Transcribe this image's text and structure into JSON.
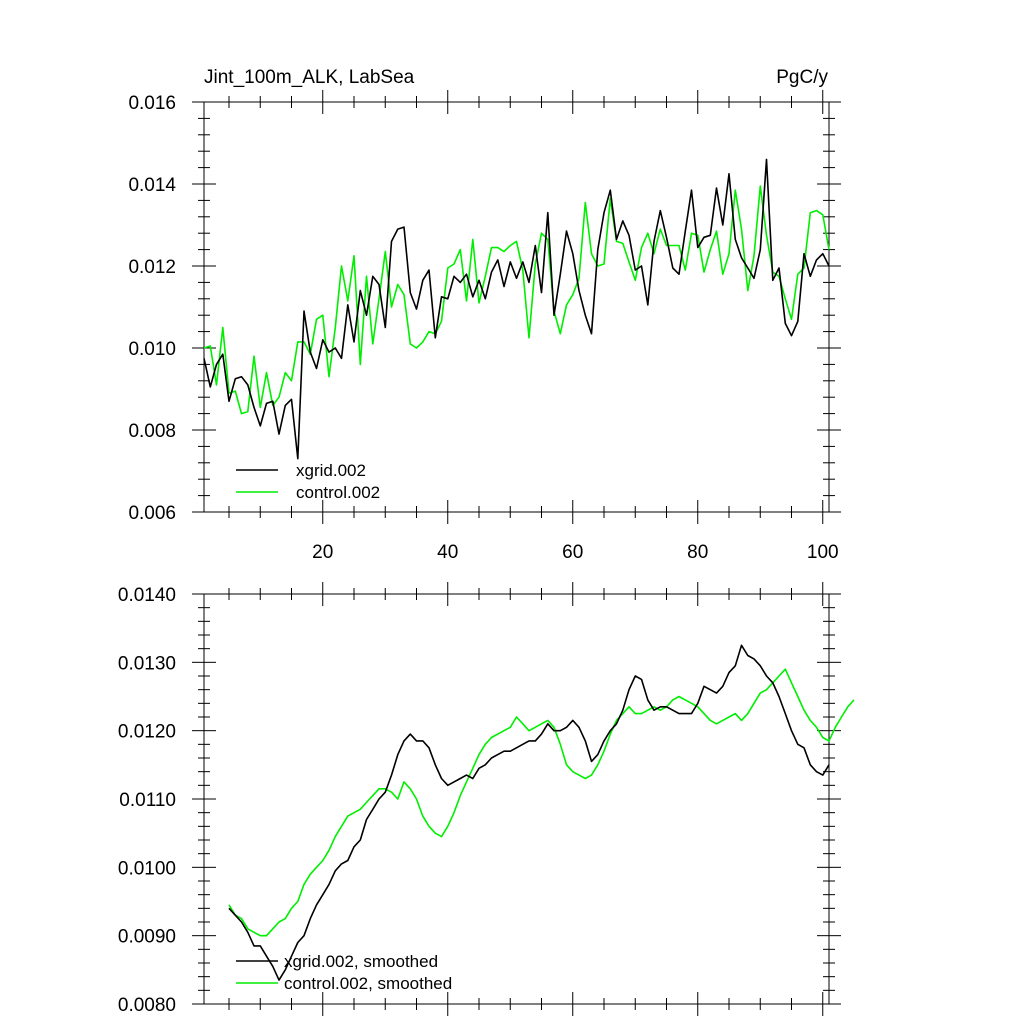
{
  "chart_data": [
    {
      "type": "line",
      "title": "Jint_100m_ALK, LabSea",
      "units": "PgC/y",
      "xlabel": "",
      "ylabel": "",
      "xlim": [
        1,
        101
      ],
      "ylim": [
        0.006,
        0.016
      ],
      "x_ticks": [
        20,
        40,
        60,
        80,
        100
      ],
      "x_tick_labels": [
        "20",
        "40",
        "60",
        "80",
        "100"
      ],
      "y_ticks": [
        0.006,
        0.008,
        0.01,
        0.012,
        0.014,
        0.016
      ],
      "y_tick_labels": [
        "0.006",
        "0.008",
        "0.010",
        "0.012",
        "0.014",
        "0.016"
      ],
      "legend_position": "bottom-left",
      "series": [
        {
          "name": "xgrid.002",
          "color": "#000000",
          "x_start": 1,
          "values": [
            0.00975,
            0.00905,
            0.0096,
            0.00985,
            0.0087,
            0.00925,
            0.0093,
            0.0091,
            0.00855,
            0.0081,
            0.00865,
            0.0087,
            0.0079,
            0.0086,
            0.00875,
            0.0073,
            0.0109,
            0.0099,
            0.0095,
            0.0102,
            0.0099,
            0.01,
            0.00975,
            0.01105,
            0.01015,
            0.0114,
            0.0108,
            0.01175,
            0.01155,
            0.0105,
            0.0126,
            0.0129,
            0.01295,
            0.01135,
            0.01095,
            0.01165,
            0.0119,
            0.01025,
            0.01125,
            0.0112,
            0.01175,
            0.0116,
            0.0118,
            0.01125,
            0.01165,
            0.0112,
            0.01185,
            0.01215,
            0.0115,
            0.0121,
            0.0117,
            0.0121,
            0.0116,
            0.0125,
            0.01135,
            0.0133,
            0.0108,
            0.0118,
            0.01285,
            0.0123,
            0.0114,
            0.0108,
            0.01035,
            0.0124,
            0.0133,
            0.01385,
            0.01265,
            0.0131,
            0.01275,
            0.0119,
            0.012,
            0.01105,
            0.0126,
            0.01335,
            0.0127,
            0.01195,
            0.0118,
            0.01285,
            0.01385,
            0.01245,
            0.0127,
            0.01275,
            0.0139,
            0.013,
            0.01425,
            0.01265,
            0.0122,
            0.01195,
            0.0117,
            0.0124,
            0.0146,
            0.01165,
            0.01195,
            0.0106,
            0.0103,
            0.01065,
            0.0123,
            0.01175,
            0.01215,
            0.0123,
            0.012
          ]
        },
        {
          "name": "control.002",
          "color": "#00ee00",
          "x_start": 1,
          "values": [
            0.01,
            0.01005,
            0.0091,
            0.0105,
            0.0089,
            0.00895,
            0.0084,
            0.00845,
            0.0098,
            0.00855,
            0.0094,
            0.0086,
            0.0088,
            0.0094,
            0.0092,
            0.01015,
            0.01015,
            0.00985,
            0.0107,
            0.0108,
            0.0093,
            0.0105,
            0.012,
            0.01115,
            0.01225,
            0.0096,
            0.01175,
            0.0101,
            0.0112,
            0.01235,
            0.011,
            0.01155,
            0.0113,
            0.0101,
            0.01,
            0.01015,
            0.0104,
            0.01035,
            0.01065,
            0.01195,
            0.01205,
            0.0124,
            0.01115,
            0.01265,
            0.0111,
            0.01175,
            0.01245,
            0.01245,
            0.01235,
            0.0125,
            0.0126,
            0.0119,
            0.01025,
            0.01205,
            0.0128,
            0.01265,
            0.0109,
            0.01035,
            0.01105,
            0.0113,
            0.0117,
            0.01355,
            0.0123,
            0.012,
            0.01205,
            0.01365,
            0.0126,
            0.01255,
            0.0121,
            0.01165,
            0.01245,
            0.0128,
            0.0123,
            0.0129,
            0.0125,
            0.0125,
            0.0125,
            0.0119,
            0.0128,
            0.01275,
            0.01185,
            0.0124,
            0.01285,
            0.0118,
            0.0123,
            0.01385,
            0.0129,
            0.0114,
            0.01225,
            0.01395,
            0.01275,
            0.01185,
            0.01175,
            0.0112,
            0.0107,
            0.0118,
            0.01195,
            0.0133,
            0.01335,
            0.01325,
            0.0124
          ]
        }
      ]
    },
    {
      "type": "line",
      "title": "",
      "xlabel": "",
      "ylabel": "",
      "xlim": [
        1,
        101
      ],
      "ylim": [
        0.008,
        0.014
      ],
      "x_ticks": [
        20,
        40,
        60,
        80,
        100
      ],
      "x_tick_labels": [],
      "y_ticks": [
        0.008,
        0.009,
        0.01,
        0.011,
        0.012,
        0.013,
        0.014
      ],
      "y_tick_labels": [
        "0.0080",
        "0.0090",
        "0.0100",
        "0.0110",
        "0.0120",
        "0.0130",
        "0.0140"
      ],
      "legend_position": "bottom-left",
      "series": [
        {
          "name": "xgrid.002, smoothed",
          "color": "#000000",
          "x_start": 5,
          "values": [
            0.0094,
            0.0093,
            0.0092,
            0.00905,
            0.00885,
            0.00885,
            0.0087,
            0.00855,
            0.00835,
            0.0085,
            0.0087,
            0.0089,
            0.009,
            0.00925,
            0.00945,
            0.0096,
            0.00975,
            0.00995,
            0.01005,
            0.0101,
            0.0103,
            0.0104,
            0.0107,
            0.01085,
            0.011,
            0.0111,
            0.01135,
            0.01165,
            0.01185,
            0.01195,
            0.01185,
            0.01185,
            0.01175,
            0.0115,
            0.0113,
            0.0112,
            0.01125,
            0.0113,
            0.01135,
            0.0113,
            0.01145,
            0.0115,
            0.0116,
            0.01165,
            0.0117,
            0.0117,
            0.01175,
            0.0118,
            0.01185,
            0.01185,
            0.01195,
            0.0121,
            0.012,
            0.012,
            0.01205,
            0.01215,
            0.01205,
            0.01185,
            0.01155,
            0.01165,
            0.01185,
            0.012,
            0.0121,
            0.0123,
            0.0126,
            0.0128,
            0.01275,
            0.01245,
            0.0123,
            0.01235,
            0.01235,
            0.0123,
            0.01225,
            0.01225,
            0.01225,
            0.0124,
            0.01265,
            0.0126,
            0.01255,
            0.01265,
            0.01285,
            0.01295,
            0.01325,
            0.0131,
            0.01305,
            0.01295,
            0.0128,
            0.0127,
            0.0125,
            0.01225,
            0.012,
            0.0118,
            0.01175,
            0.0115,
            0.0114,
            0.01135,
            0.0115
          ]
        },
        {
          "name": "control.002, smoothed",
          "color": "#00ee00",
          "x_start": 5,
          "values": [
            0.00945,
            0.0093,
            0.00925,
            0.0091,
            0.00905,
            0.009,
            0.009,
            0.0091,
            0.0092,
            0.00925,
            0.0094,
            0.0095,
            0.00975,
            0.0099,
            0.01,
            0.0101,
            0.01025,
            0.01045,
            0.0106,
            0.01075,
            0.0108,
            0.01085,
            0.01095,
            0.01105,
            0.01115,
            0.01115,
            0.0111,
            0.011,
            0.01125,
            0.01115,
            0.011,
            0.01075,
            0.0106,
            0.0105,
            0.01045,
            0.0106,
            0.0108,
            0.01105,
            0.01125,
            0.01145,
            0.01165,
            0.0118,
            0.0119,
            0.01195,
            0.012,
            0.01205,
            0.0122,
            0.0121,
            0.012,
            0.01205,
            0.0121,
            0.01215,
            0.01205,
            0.0118,
            0.0115,
            0.0114,
            0.01135,
            0.0113,
            0.01135,
            0.0115,
            0.0117,
            0.01195,
            0.01215,
            0.01225,
            0.01235,
            0.01225,
            0.01225,
            0.0123,
            0.01235,
            0.0123,
            0.01235,
            0.01245,
            0.0125,
            0.01245,
            0.0124,
            0.01235,
            0.01225,
            0.01215,
            0.0121,
            0.01215,
            0.0122,
            0.01225,
            0.01215,
            0.01225,
            0.0124,
            0.01255,
            0.0126,
            0.0127,
            0.0128,
            0.0129,
            0.0127,
            0.0125,
            0.0123,
            0.01215,
            0.01205,
            0.0119,
            0.01185,
            0.01205,
            0.0122,
            0.01235,
            0.01245
          ]
        }
      ]
    }
  ]
}
